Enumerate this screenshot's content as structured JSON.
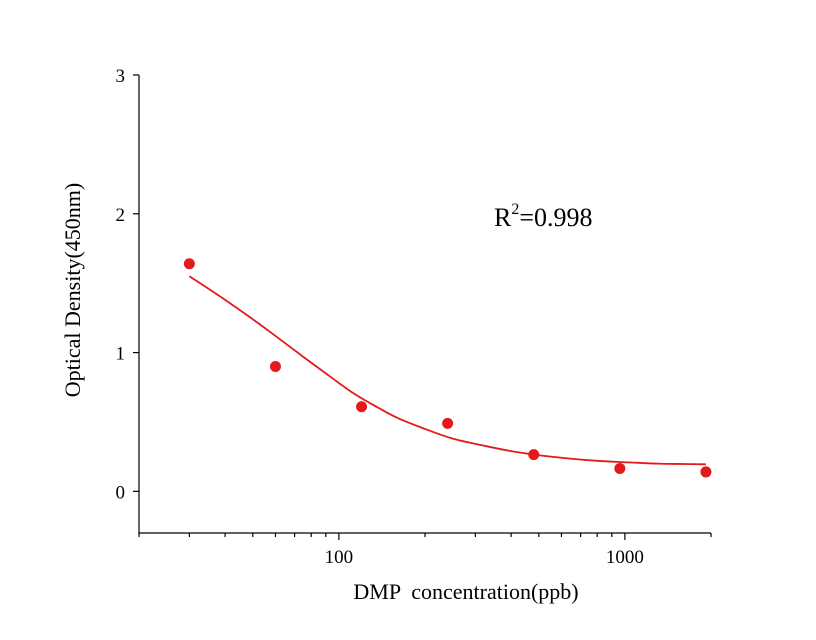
{
  "chart_data": {
    "type": "scatter",
    "xlabel": "DMP  concentration(ppb)",
    "ylabel": "Optical Density(450nm)",
    "x_scale": "log",
    "xlim": [
      20,
      2000
    ],
    "ylim": [
      -0.3,
      3
    ],
    "x_ticks": [
      100,
      1000
    ],
    "y_ticks": [
      0,
      1,
      2,
      3
    ],
    "grid": false,
    "annotation": {
      "base": "R",
      "sup": "2",
      "value": "=0.998"
    },
    "series": [
      {
        "kind": "points",
        "color": "#e31a1c",
        "x": [
          30,
          60,
          120,
          240,
          480,
          960,
          1920
        ],
        "y": [
          1.64,
          0.9,
          0.61,
          0.49,
          0.265,
          0.165,
          0.14
        ]
      },
      {
        "kind": "fit-curve",
        "color": "#e31a1c",
        "x": [
          30,
          40,
          50,
          60,
          75,
          90,
          110,
          130,
          160,
          200,
          250,
          320,
          400,
          500,
          650,
          800,
          1000,
          1300,
          1600,
          1920
        ],
        "y": [
          1.55,
          1.38,
          1.24,
          1.12,
          0.97,
          0.85,
          0.72,
          0.63,
          0.53,
          0.45,
          0.38,
          0.33,
          0.29,
          0.26,
          0.235,
          0.22,
          0.21,
          0.2,
          0.197,
          0.195
        ]
      }
    ]
  }
}
